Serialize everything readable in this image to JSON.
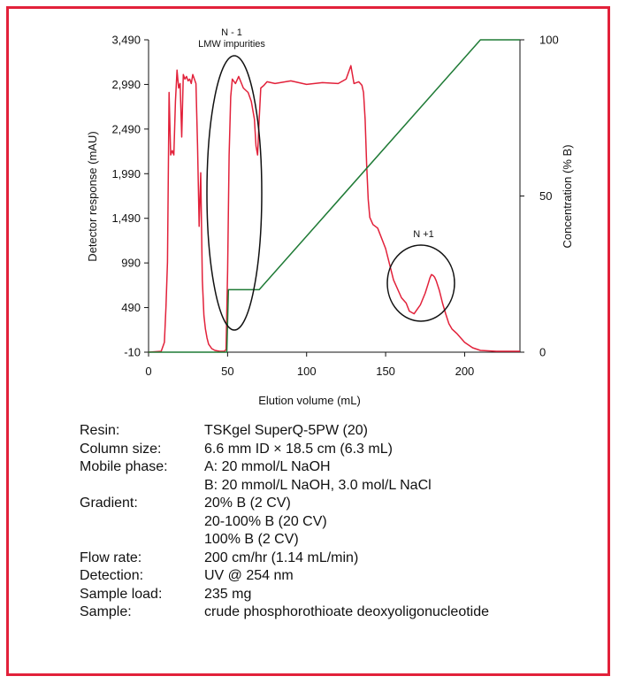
{
  "chart_data": {
    "type": "line",
    "xlabel": "Elution volume (mL)",
    "ylabel": "Detector response (mAU)",
    "y2label": "Concentration (% B)",
    "xlim": [
      0,
      235
    ],
    "ylim": [
      -10,
      3490
    ],
    "y2lim": [
      0,
      100
    ],
    "xticks": [
      0,
      50,
      100,
      150,
      200
    ],
    "yticks": [
      -10,
      490,
      990,
      1490,
      1990,
      2490,
      2990,
      3490
    ],
    "y2ticks": [
      0,
      50,
      100
    ],
    "grid": false,
    "series": [
      {
        "axis": "left",
        "color": "#e2213a",
        "x": [
          0,
          8,
          10,
          11,
          12,
          13,
          14,
          15,
          16,
          17,
          18,
          19,
          20,
          21,
          22,
          23,
          24,
          25,
          26,
          27,
          28,
          29,
          30,
          31,
          32,
          33,
          34,
          35,
          36,
          37,
          38,
          40,
          42,
          45,
          48,
          49,
          50,
          51,
          52,
          53,
          55,
          57,
          60,
          63,
          65,
          67,
          68,
          69,
          70,
          71,
          73,
          75,
          80,
          90,
          100,
          110,
          120,
          125,
          128,
          130,
          133,
          135,
          136,
          137,
          138,
          139,
          140,
          142,
          145,
          150,
          155,
          160,
          163,
          165,
          168,
          170,
          172,
          175,
          177,
          178,
          179,
          180,
          181,
          182,
          184,
          186,
          188,
          190,
          192,
          195,
          198,
          200,
          205,
          210,
          220,
          235
        ],
        "y": [
          -10,
          0,
          100,
          500,
          1000,
          2900,
          2200,
          2250,
          2200,
          2800,
          3150,
          2950,
          3000,
          2400,
          3100,
          3050,
          3080,
          3030,
          3050,
          3000,
          3100,
          3050,
          3000,
          2300,
          1400,
          2000,
          800,
          400,
          250,
          150,
          80,
          30,
          10,
          0,
          0,
          20,
          900,
          2200,
          2850,
          3050,
          3000,
          3080,
          2950,
          2900,
          2800,
          2600,
          2300,
          2200,
          2600,
          2950,
          2980,
          3020,
          3000,
          3030,
          2990,
          3010,
          3000,
          3050,
          3200,
          3000,
          3020,
          2980,
          2900,
          2600,
          2100,
          1700,
          1500,
          1420,
          1380,
          1150,
          800,
          600,
          540,
          450,
          420,
          470,
          520,
          650,
          760,
          820,
          860,
          850,
          830,
          790,
          680,
          540,
          420,
          310,
          250,
          200,
          140,
          100,
          40,
          10,
          0,
          0
        ]
      },
      {
        "axis": "right",
        "color": "#1e7a35",
        "x": [
          0,
          49.5,
          50.5,
          70,
          210,
          235
        ],
        "y": [
          0,
          0,
          20,
          20,
          100,
          100
        ]
      }
    ],
    "annotations": [
      {
        "lines": [
          "N - 1",
          "LMW impurities"
        ]
      },
      {
        "lines": [
          "N +1"
        ]
      }
    ]
  },
  "conditions": [
    {
      "label": "Resin:",
      "values": [
        "TSKgel SuperQ-5PW (20)"
      ]
    },
    {
      "label": "Column size:",
      "values": [
        "6.6 mm ID × 18.5 cm (6.3 mL)"
      ]
    },
    {
      "label": "Mobile phase:",
      "values": [
        "A: 20 mmol/L NaOH",
        "B: 20 mmol/L NaOH, 3.0 mol/L NaCl"
      ]
    },
    {
      "label": "Gradient:",
      "values": [
        "20% B (2 CV)",
        "20-100% B (20 CV)",
        "100% B (2 CV)"
      ]
    },
    {
      "label": "Flow rate:",
      "values": [
        "200 cm/hr (1.14 mL/min)"
      ]
    },
    {
      "label": "Detection:",
      "values": [
        "UV @ 254 nm"
      ]
    },
    {
      "label": "Sample load:",
      "values": [
        "235 mg"
      ]
    },
    {
      "label": "Sample:",
      "values": [
        "crude phosphorothioate deoxyoligonucleotide"
      ]
    }
  ]
}
